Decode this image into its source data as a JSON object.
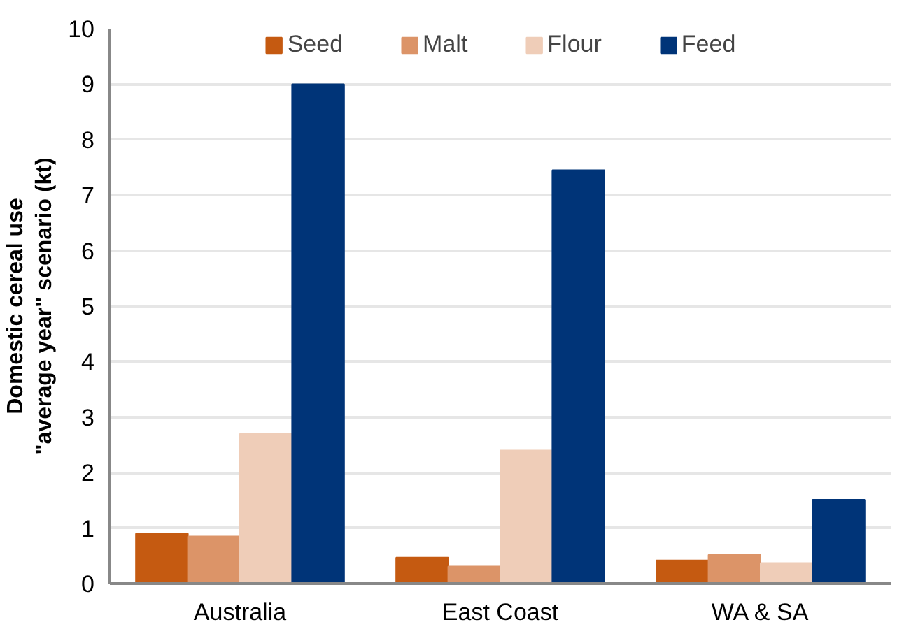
{
  "chart_data": {
    "type": "bar",
    "ylabel": "Domestic cereal use\n\"average year\" scenario (kt)",
    "categories": [
      "Australia",
      "East Coast",
      "WA & SA"
    ],
    "series": [
      {
        "name": "Seed",
        "color": "#c55a11",
        "values": [
          0.9,
          0.47,
          0.42
        ]
      },
      {
        "name": "Malt",
        "color": "#dc9468",
        "values": [
          0.85,
          0.31,
          0.52
        ]
      },
      {
        "name": "Flour",
        "color": "#efcdb8",
        "values": [
          2.7,
          2.4,
          0.37
        ]
      },
      {
        "name": "Feed",
        "color": "#003478",
        "values": [
          9.0,
          7.45,
          1.51
        ]
      }
    ],
    "ylim": [
      0,
      10
    ],
    "yticks": [
      0,
      1,
      2,
      3,
      4,
      5,
      6,
      7,
      8,
      9,
      10
    ],
    "grid": "y",
    "legend": "top"
  }
}
